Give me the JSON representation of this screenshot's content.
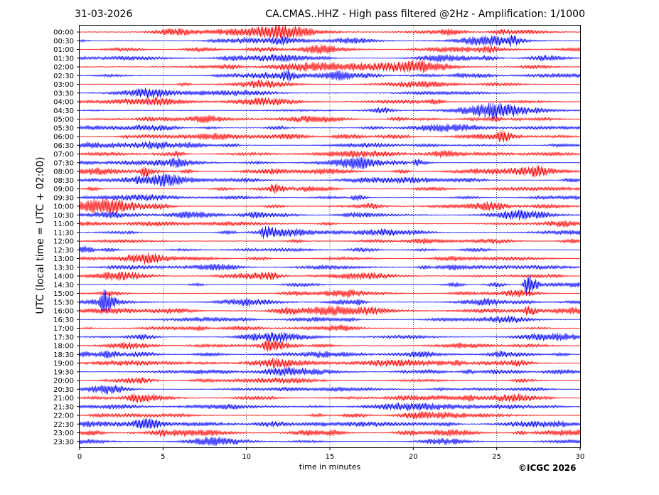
{
  "date": "31-03-2026",
  "title": "CA.CMAS..HHZ - High pass filtered @2Hz - Amplification: 1/1000",
  "copyright": "©ICGC 2026",
  "chart_data": {
    "type": "line",
    "xlabel": "time in minutes",
    "ylabel": "UTC (local time = UTC + 02:00)",
    "xlim": [
      0,
      30
    ],
    "xticks": [
      "0",
      "5",
      "10",
      "15",
      "20",
      "25",
      "30"
    ],
    "x_gridlines_minutes": [
      5,
      10,
      15,
      20,
      25
    ],
    "grid": "vertical dotted",
    "colors": [
      "#ff0000",
      "#0000ff"
    ],
    "rows": [
      {
        "label": "00:00",
        "color": "#ff0000"
      },
      {
        "label": "00:30",
        "color": "#0000ff"
      },
      {
        "label": "01:00",
        "color": "#ff0000"
      },
      {
        "label": "01:30",
        "color": "#0000ff"
      },
      {
        "label": "02:00",
        "color": "#ff0000"
      },
      {
        "label": "02:30",
        "color": "#0000ff"
      },
      {
        "label": "03:00",
        "color": "#ff0000"
      },
      {
        "label": "03:30",
        "color": "#0000ff"
      },
      {
        "label": "04:00",
        "color": "#ff0000"
      },
      {
        "label": "04:30",
        "color": "#0000ff"
      },
      {
        "label": "05:00",
        "color": "#ff0000"
      },
      {
        "label": "05:30",
        "color": "#0000ff"
      },
      {
        "label": "06:00",
        "color": "#ff0000"
      },
      {
        "label": "06:30",
        "color": "#0000ff"
      },
      {
        "label": "07:00",
        "color": "#ff0000"
      },
      {
        "label": "07:30",
        "color": "#0000ff"
      },
      {
        "label": "08:00",
        "color": "#ff0000"
      },
      {
        "label": "08:30",
        "color": "#0000ff"
      },
      {
        "label": "09:00",
        "color": "#ff0000"
      },
      {
        "label": "09:30",
        "color": "#0000ff"
      },
      {
        "label": "10:00",
        "color": "#ff0000"
      },
      {
        "label": "10:30",
        "color": "#0000ff"
      },
      {
        "label": "11:00",
        "color": "#ff0000"
      },
      {
        "label": "11:30",
        "color": "#0000ff"
      },
      {
        "label": "12:00",
        "color": "#ff0000"
      },
      {
        "label": "12:30",
        "color": "#0000ff"
      },
      {
        "label": "13:00",
        "color": "#ff0000"
      },
      {
        "label": "13:30",
        "color": "#0000ff"
      },
      {
        "label": "14:00",
        "color": "#ff0000"
      },
      {
        "label": "14:30",
        "color": "#0000ff"
      },
      {
        "label": "15:00",
        "color": "#ff0000"
      },
      {
        "label": "15:30",
        "color": "#0000ff"
      },
      {
        "label": "16:00",
        "color": "#ff0000"
      },
      {
        "label": "16:30",
        "color": "#0000ff"
      },
      {
        "label": "17:00",
        "color": "#ff0000"
      },
      {
        "label": "17:30",
        "color": "#0000ff"
      },
      {
        "label": "18:00",
        "color": "#ff0000"
      },
      {
        "label": "18:30",
        "color": "#0000ff"
      },
      {
        "label": "19:00",
        "color": "#ff0000"
      },
      {
        "label": "19:30",
        "color": "#0000ff"
      },
      {
        "label": "20:00",
        "color": "#ff0000"
      },
      {
        "label": "20:30",
        "color": "#0000ff"
      },
      {
        "label": "21:00",
        "color": "#ff0000"
      },
      {
        "label": "21:30",
        "color": "#0000ff"
      },
      {
        "label": "22:00",
        "color": "#ff0000"
      },
      {
        "label": "22:30",
        "color": "#0000ff"
      },
      {
        "label": "23:00",
        "color": "#ff0000"
      },
      {
        "label": "23:30",
        "color": "#0000ff"
      }
    ],
    "events": [
      {
        "row": "15:30",
        "minute": 1.4,
        "amplitude": 1.0
      },
      {
        "row": "14:30",
        "minute": 26.8,
        "amplitude": 1.0
      },
      {
        "row": "08:00",
        "minute": 3.8,
        "amplitude": 0.45
      },
      {
        "row": "11:30",
        "minute": 11.0,
        "amplitude": 0.4
      },
      {
        "row": "06:00",
        "minute": 25.2,
        "amplitude": 0.35
      },
      {
        "row": "02:30",
        "minute": 12.3,
        "amplitude": 0.35
      },
      {
        "row": "07:30",
        "minute": 20.2,
        "amplitude": 0.3
      },
      {
        "row": "09:30",
        "minute": 16.5,
        "amplitude": 0.3
      },
      {
        "row": "16:00",
        "minute": 26.8,
        "amplitude": 0.3
      },
      {
        "row": "09:00",
        "minute": 11.6,
        "amplitude": 0.3
      },
      {
        "row": "00:30",
        "minute": 25.8,
        "amplitude": 0.3
      },
      {
        "row": "18:00",
        "minute": 11.2,
        "amplitude": 0.25
      }
    ]
  }
}
